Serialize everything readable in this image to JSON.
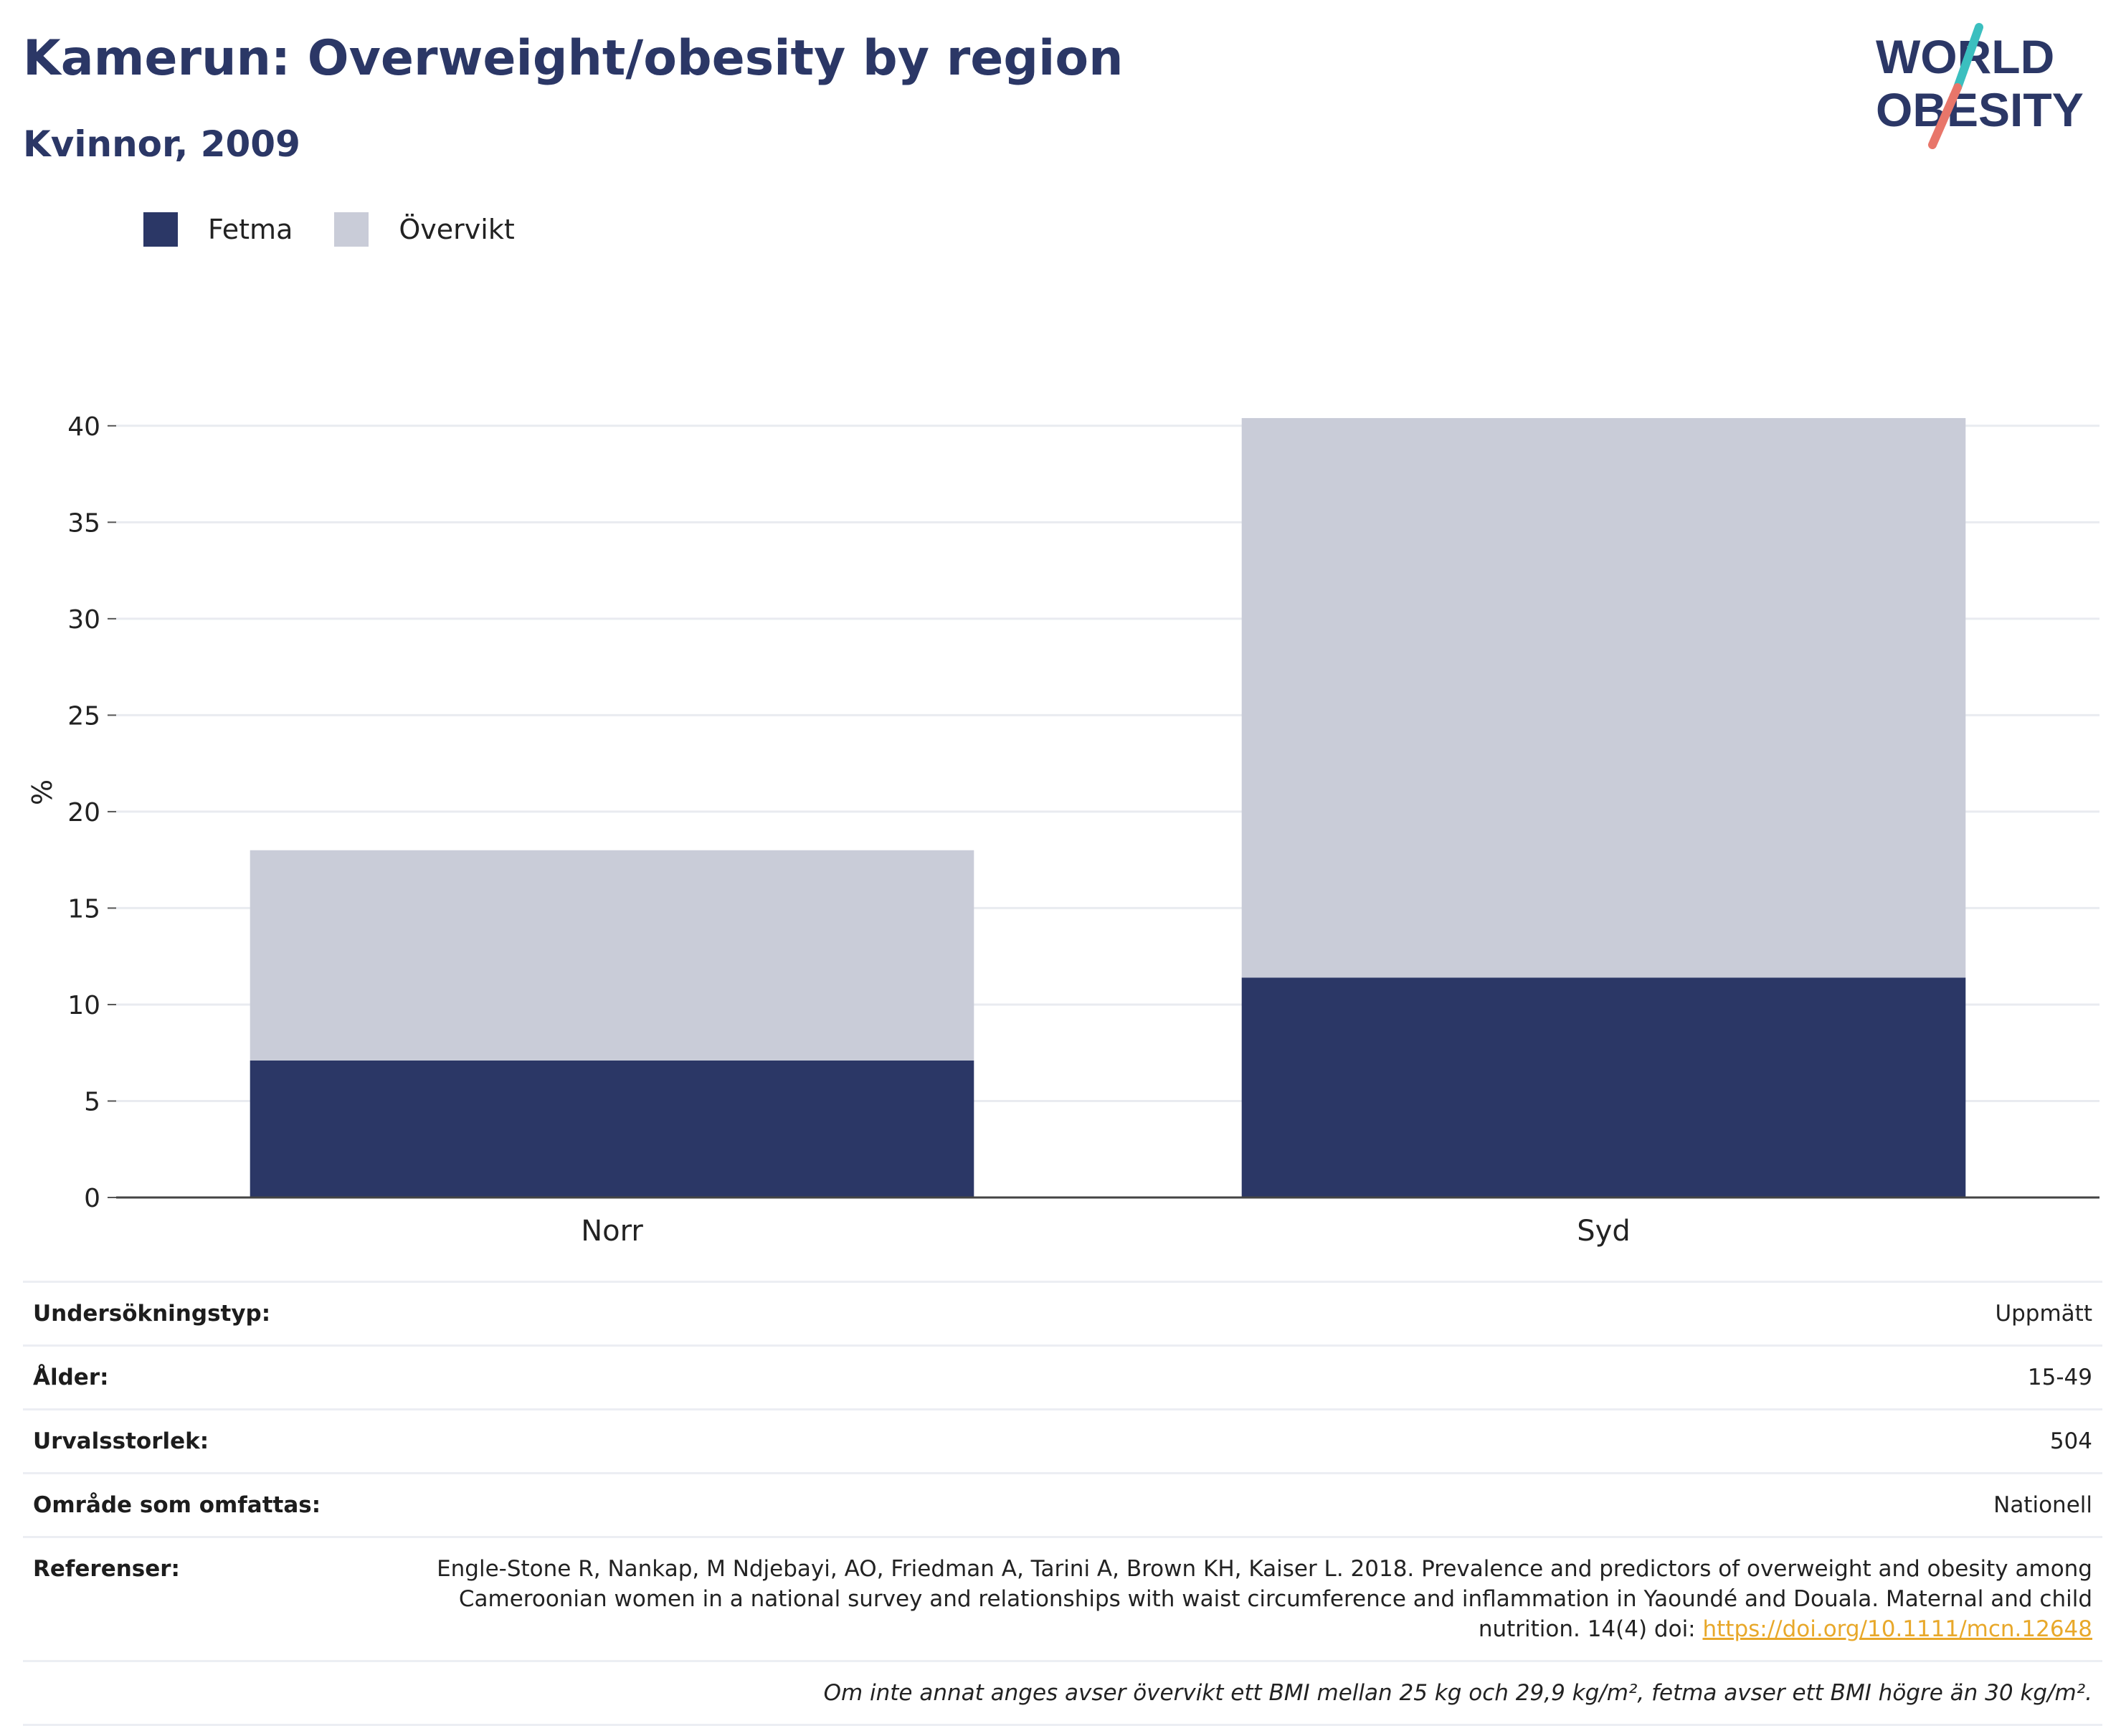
{
  "header": {
    "title": "Kamerun: Overweight/obesity by region",
    "subtitle": "Kvinnor, 2009"
  },
  "logo": {
    "line1": "WORLD",
    "line2": "OBESITY"
  },
  "legend": [
    {
      "label": "Fetma",
      "color": "#2b3766"
    },
    {
      "label": "Övervikt",
      "color": "#c9ccd8"
    }
  ],
  "chart_data": {
    "type": "bar",
    "stacked": true,
    "categories": [
      "Norr",
      "Syd"
    ],
    "series": [
      {
        "name": "Fetma",
        "values": [
          7.1,
          11.4
        ],
        "color": "#2b3766"
      },
      {
        "name": "Övervikt",
        "values": [
          10.9,
          29.0
        ],
        "color": "#c9ccd8"
      }
    ],
    "ylabel": "%",
    "ylim": [
      0,
      42
    ],
    "yticks": [
      0,
      5,
      10,
      15,
      20,
      25,
      30,
      35,
      40
    ],
    "grid": true,
    "legend_position": "top-left"
  },
  "details": {
    "rows": [
      {
        "key": "Undersökningstyp:",
        "value": "Uppmätt"
      },
      {
        "key": "Ålder:",
        "value": "15-49"
      },
      {
        "key": "Urvalsstorlek:",
        "value": "504"
      },
      {
        "key": "Område som omfattas:",
        "value": "Nationell"
      }
    ],
    "references_key": "Referenser:",
    "references_text": "Engle-Stone R, Nankap, M Ndjebayi, AO, Friedman A, Tarini A, Brown KH, Kaiser L. 2018. Prevalence and predictors of overweight and obesity among Cameroonian women in a national survey and relationships with waist circumference and inflammation in Yaoundé and Douala. Maternal and child nutrition. 14(4) doi: ",
    "references_link": "https://doi.org/10.1111/mcn.12648",
    "note": "Om inte annat anges avser övervikt ett BMI mellan 25 kg och 29,9 kg/m², fetma avser ett BMI högre än 30 kg/m²."
  }
}
